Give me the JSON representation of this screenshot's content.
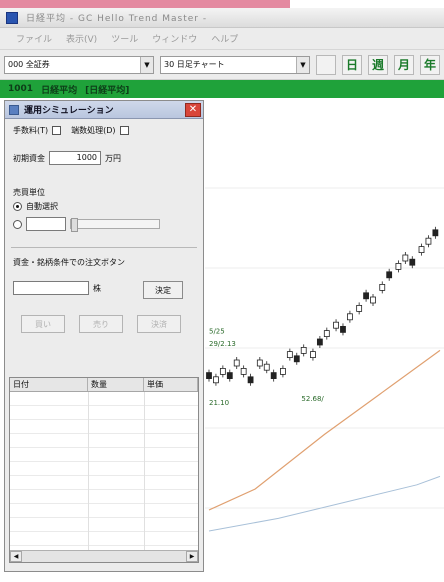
{
  "window": {
    "title": "日経平均 - GC Hello Trend Master -"
  },
  "menu": [
    "ファイル",
    "表示(V)",
    "ツール",
    "ウィンドウ",
    "ヘルプ"
  ],
  "toolbar": {
    "symbol_value": "000 全証券",
    "chart_value": "30 日足チャート",
    "period_buttons": [
      "日",
      "週",
      "月",
      "年"
    ]
  },
  "greenbar": {
    "items": [
      "1001",
      "日経平均",
      "[日経平均]"
    ]
  },
  "panel": {
    "title": "運用シミュレーション",
    "option_a": "手数料(T)",
    "option_b": "端数処理(D)",
    "capital_label": "初期資金",
    "capital_value": "1000",
    "capital_unit": "万円",
    "lot_heading": "売買単位",
    "lot_auto_label": "自動選択",
    "section_heading": "資金・銘柄条件での注文ボタン",
    "shares_unit": "株",
    "decide_label": "決定",
    "buy_label": "買い",
    "sell_label": "売り",
    "close_label": "決済",
    "columns": [
      "日付",
      "数量",
      "単価"
    ]
  },
  "colors": {
    "accent_green": "#1fa23a",
    "title_pink": "#e48aa1"
  },
  "icons": {
    "close": "close-icon",
    "app": "app-icon"
  },
  "chart_data": {
    "type": "line",
    "title": "",
    "annotations": [
      "5/25",
      "29/2.13",
      "21.10",
      "52.68/"
    ],
    "candles": [
      [
        0.0,
        0.42
      ],
      [
        0.03,
        0.41
      ],
      [
        0.06,
        0.43
      ],
      [
        0.09,
        0.42
      ],
      [
        0.12,
        0.45
      ],
      [
        0.15,
        0.43
      ],
      [
        0.18,
        0.41
      ],
      [
        0.22,
        0.45
      ],
      [
        0.25,
        0.44
      ],
      [
        0.28,
        0.42
      ],
      [
        0.32,
        0.43
      ],
      [
        0.35,
        0.47
      ],
      [
        0.38,
        0.46
      ],
      [
        0.41,
        0.48
      ],
      [
        0.45,
        0.47
      ],
      [
        0.48,
        0.5
      ],
      [
        0.51,
        0.52
      ],
      [
        0.55,
        0.54
      ],
      [
        0.58,
        0.53
      ],
      [
        0.61,
        0.56
      ],
      [
        0.65,
        0.58
      ],
      [
        0.68,
        0.61
      ],
      [
        0.71,
        0.6
      ],
      [
        0.75,
        0.63
      ],
      [
        0.78,
        0.66
      ],
      [
        0.82,
        0.68
      ],
      [
        0.85,
        0.7
      ],
      [
        0.88,
        0.69
      ],
      [
        0.92,
        0.72
      ],
      [
        0.95,
        0.74
      ],
      [
        0.98,
        0.76
      ]
    ],
    "ma_line": [
      [
        0.0,
        0.1
      ],
      [
        0.2,
        0.15
      ],
      [
        0.5,
        0.28
      ],
      [
        0.8,
        0.4
      ],
      [
        1.0,
        0.48
      ]
    ],
    "lower_line": [
      [
        0.0,
        0.05
      ],
      [
        0.3,
        0.08
      ],
      [
        0.6,
        0.12
      ],
      [
        0.9,
        0.16
      ],
      [
        1.0,
        0.18
      ]
    ]
  }
}
